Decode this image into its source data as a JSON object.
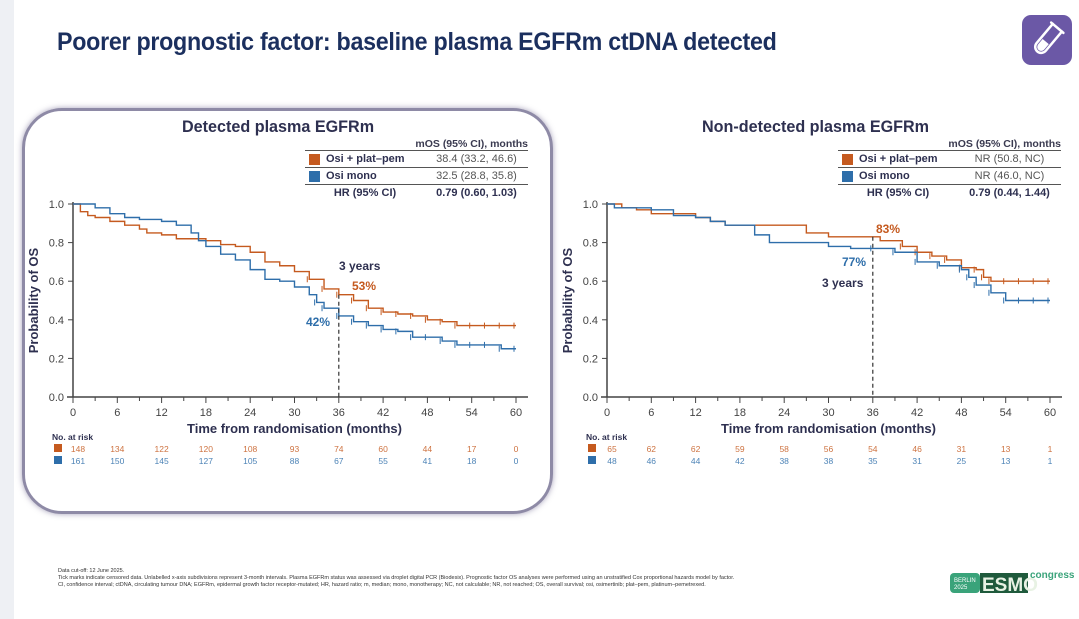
{
  "title": "Poorer prognostic factor: baseline plasma EGFRm ctDNA detected",
  "header_icon": "test-tube-icon",
  "colors": {
    "osi_plat_pem": "#c55a1f",
    "osi_mono": "#2e6eaa",
    "title": "#1b2f5e",
    "icon_bg": "#6b58a6"
  },
  "panels": [
    {
      "subtitle": "Detected plasma EGFRm",
      "legend_header": "mOS (95% CI), months",
      "legend": [
        {
          "name": "Osi + plat–pem",
          "value": "38.4 (33.2, 46.6)"
        },
        {
          "name": "Osi mono",
          "value": "32.5 (28.8, 35.8)"
        }
      ],
      "hr_label": "HR (95% CI)",
      "hr_value": "0.79 (0.60, 1.03)",
      "annotation_years": "3 years",
      "annotation_a": "53%",
      "annotation_b": "42%",
      "risk_title": "No. at risk"
    },
    {
      "subtitle": "Non-detected plasma EGFRm",
      "legend_header": "mOS (95% CI), months",
      "legend": [
        {
          "name": "Osi + plat–pem",
          "value": "NR (50.8, NC)"
        },
        {
          "name": "Osi mono",
          "value": "NR (46.0, NC)"
        }
      ],
      "hr_label": "HR (95% CI)",
      "hr_value": "0.79 (0.44, 1.44)",
      "annotation_years": "3 years",
      "annotation_a": "83%",
      "annotation_b": "77%",
      "risk_title": "No. at risk"
    }
  ],
  "chart_data": [
    {
      "type": "line",
      "title": "Detected plasma EGFRm",
      "xlabel": "Time from randomisation (months)",
      "ylabel": "Probability of OS",
      "xlim": [
        0,
        60
      ],
      "ylim": [
        0,
        1.0
      ],
      "x_ticks": [
        0,
        6,
        12,
        18,
        24,
        30,
        36,
        42,
        48,
        54,
        60
      ],
      "y_ticks": [
        "0.0",
        "0.2",
        "0.4",
        "0.6",
        "0.8",
        "1.0"
      ],
      "series": [
        {
          "name": "Osi + plat–pem",
          "x": [
            0,
            1,
            2,
            3,
            5,
            7,
            9,
            10,
            12,
            14,
            16,
            18,
            20,
            22,
            24,
            26,
            28,
            30,
            32,
            34,
            36,
            38,
            40,
            42,
            44,
            46,
            48,
            50,
            52,
            54,
            56,
            58,
            60
          ],
          "y": [
            1.0,
            0.96,
            0.94,
            0.93,
            0.91,
            0.89,
            0.87,
            0.85,
            0.84,
            0.82,
            0.82,
            0.81,
            0.79,
            0.78,
            0.75,
            0.7,
            0.68,
            0.65,
            0.61,
            0.56,
            0.53,
            0.5,
            0.46,
            0.44,
            0.43,
            0.42,
            0.4,
            0.39,
            0.37,
            0.37,
            0.37,
            0.37,
            0.37
          ],
          "at_risk": [
            148,
            134,
            122,
            120,
            108,
            93,
            74,
            60,
            44,
            17,
            0
          ]
        },
        {
          "name": "Osi mono",
          "x": [
            0,
            2,
            3,
            5,
            7,
            9,
            12,
            14,
            16,
            17,
            18,
            20,
            22,
            24,
            26,
            28,
            30,
            32,
            33,
            34,
            36,
            38,
            40,
            42,
            44,
            46,
            48,
            50,
            52,
            54,
            56,
            58,
            60
          ],
          "y": [
            1.0,
            1.0,
            0.98,
            0.95,
            0.93,
            0.92,
            0.91,
            0.89,
            0.85,
            0.81,
            0.78,
            0.74,
            0.71,
            0.66,
            0.61,
            0.6,
            0.57,
            0.53,
            0.49,
            0.46,
            0.42,
            0.39,
            0.37,
            0.35,
            0.34,
            0.31,
            0.31,
            0.29,
            0.27,
            0.27,
            0.27,
            0.25,
            0.25
          ],
          "at_risk": [
            161,
            150,
            145,
            127,
            105,
            88,
            67,
            55,
            41,
            18,
            0
          ]
        }
      ],
      "annotations": [
        "3 years",
        "53%",
        "42%"
      ],
      "landmark_x": 36
    },
    {
      "type": "line",
      "title": "Non-detected plasma EGFRm",
      "xlabel": "Time from randomisation (months)",
      "ylabel": "Probability of OS",
      "xlim": [
        0,
        60
      ],
      "ylim": [
        0,
        1.0
      ],
      "x_ticks": [
        0,
        6,
        12,
        18,
        24,
        30,
        36,
        42,
        48,
        54,
        60
      ],
      "y_ticks": [
        "0.0",
        "0.2",
        "0.4",
        "0.6",
        "0.8",
        "1.0"
      ],
      "series": [
        {
          "name": "Osi + plat–pem",
          "x": [
            0,
            2,
            4,
            6,
            9,
            12,
            14,
            16,
            21,
            27,
            30,
            33,
            36,
            37,
            40,
            42,
            44,
            46,
            48,
            50,
            51,
            52,
            54,
            56,
            58,
            60
          ],
          "y": [
            1.0,
            0.98,
            0.97,
            0.95,
            0.95,
            0.93,
            0.91,
            0.89,
            0.89,
            0.85,
            0.83,
            0.83,
            0.83,
            0.81,
            0.78,
            0.75,
            0.73,
            0.71,
            0.67,
            0.66,
            0.62,
            0.6,
            0.6,
            0.6,
            0.6,
            0.6
          ],
          "at_risk": [
            65,
            62,
            62,
            59,
            58,
            56,
            54,
            46,
            31,
            13,
            1
          ]
        },
        {
          "name": "Osi mono",
          "x": [
            0,
            1,
            3,
            6,
            9,
            12,
            14,
            16,
            20,
            22,
            26,
            30,
            33,
            36,
            39,
            42,
            45,
            48,
            49,
            50,
            52,
            54,
            56,
            58,
            60
          ],
          "y": [
            1.0,
            0.98,
            0.98,
            0.97,
            0.94,
            0.93,
            0.91,
            0.89,
            0.84,
            0.8,
            0.8,
            0.78,
            0.77,
            0.77,
            0.75,
            0.7,
            0.68,
            0.66,
            0.62,
            0.58,
            0.54,
            0.5,
            0.5,
            0.5,
            0.5
          ],
          "at_risk": [
            48,
            46,
            44,
            42,
            38,
            38,
            35,
            31,
            25,
            13,
            1
          ]
        }
      ],
      "annotations": [
        "83%",
        "77%",
        "3 years"
      ],
      "landmark_x": 36
    }
  ],
  "footnote": {
    "line1": "Data cut-off: 12 June 2025.",
    "line2": "Tick marks indicate censored data. Unlabelled x-axis subdivisions represent 3-month intervals. Plasma EGFRm status was assessed via droplet digital PCR (Biodesix). Prognostic factor OS analyses were performed using an unstratified Cox proportional hazards model by factor.",
    "line3": "CI, confidence interval; ctDNA, circulating tumour DNA; EGFRm, epidermal growth factor receptor-mutated; HR, hazard ratio; m, median; mono, monotherapy; NC, not calculable; NR, not reached; OS, overall survival; osi, osimertinib; plat–pem, platinum–pemetrexed."
  },
  "logo": {
    "city": "BERLIN",
    "year": "2025",
    "brand": "ESMO",
    "suffix": "congress"
  }
}
